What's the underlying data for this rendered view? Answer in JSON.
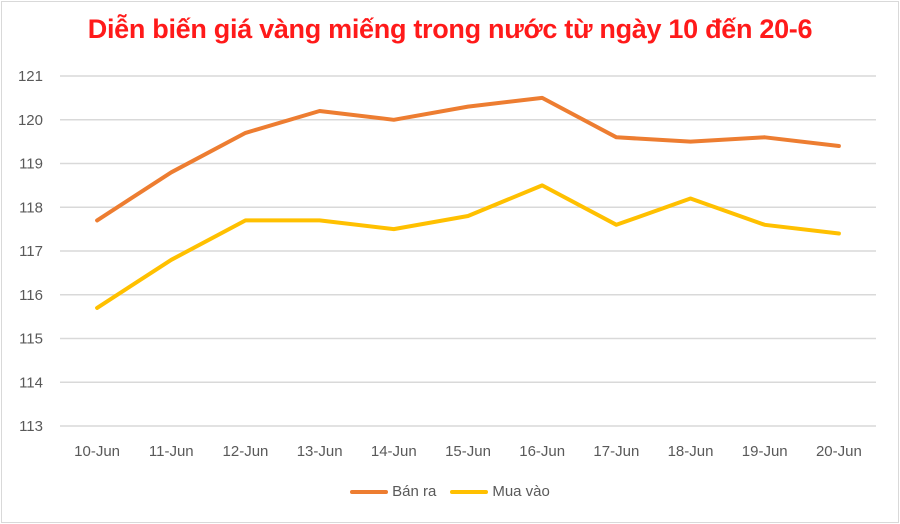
{
  "chart_data": {
    "type": "line",
    "title": "Diễn biến giá vàng miếng trong nước từ ngày 10 đến 20-6",
    "xlabel": "",
    "ylabel": "",
    "categories": [
      "10-Jun",
      "11-Jun",
      "12-Jun",
      "13-Jun",
      "14-Jun",
      "15-Jun",
      "16-Jun",
      "17-Jun",
      "18-Jun",
      "19-Jun",
      "20-Jun"
    ],
    "series": [
      {
        "name": "Bán ra",
        "color": "#ed7d31",
        "values": [
          117.7,
          118.8,
          119.7,
          120.2,
          120.0,
          120.3,
          120.5,
          119.6,
          119.5,
          119.6,
          119.4
        ]
      },
      {
        "name": "Mua vào",
        "color": "#ffc000",
        "values": [
          115.7,
          116.8,
          117.7,
          117.7,
          117.5,
          117.8,
          118.5,
          117.6,
          118.2,
          117.6,
          117.4
        ]
      }
    ],
    "ylim": [
      113,
      121
    ],
    "yticks": [
      113,
      114,
      115,
      116,
      117,
      118,
      119,
      120,
      121
    ],
    "grid": true,
    "legend_position": "bottom"
  },
  "colors": {
    "title": "#ff1a1a",
    "grid": "#d9d9d9",
    "tick_text": "#595959"
  }
}
